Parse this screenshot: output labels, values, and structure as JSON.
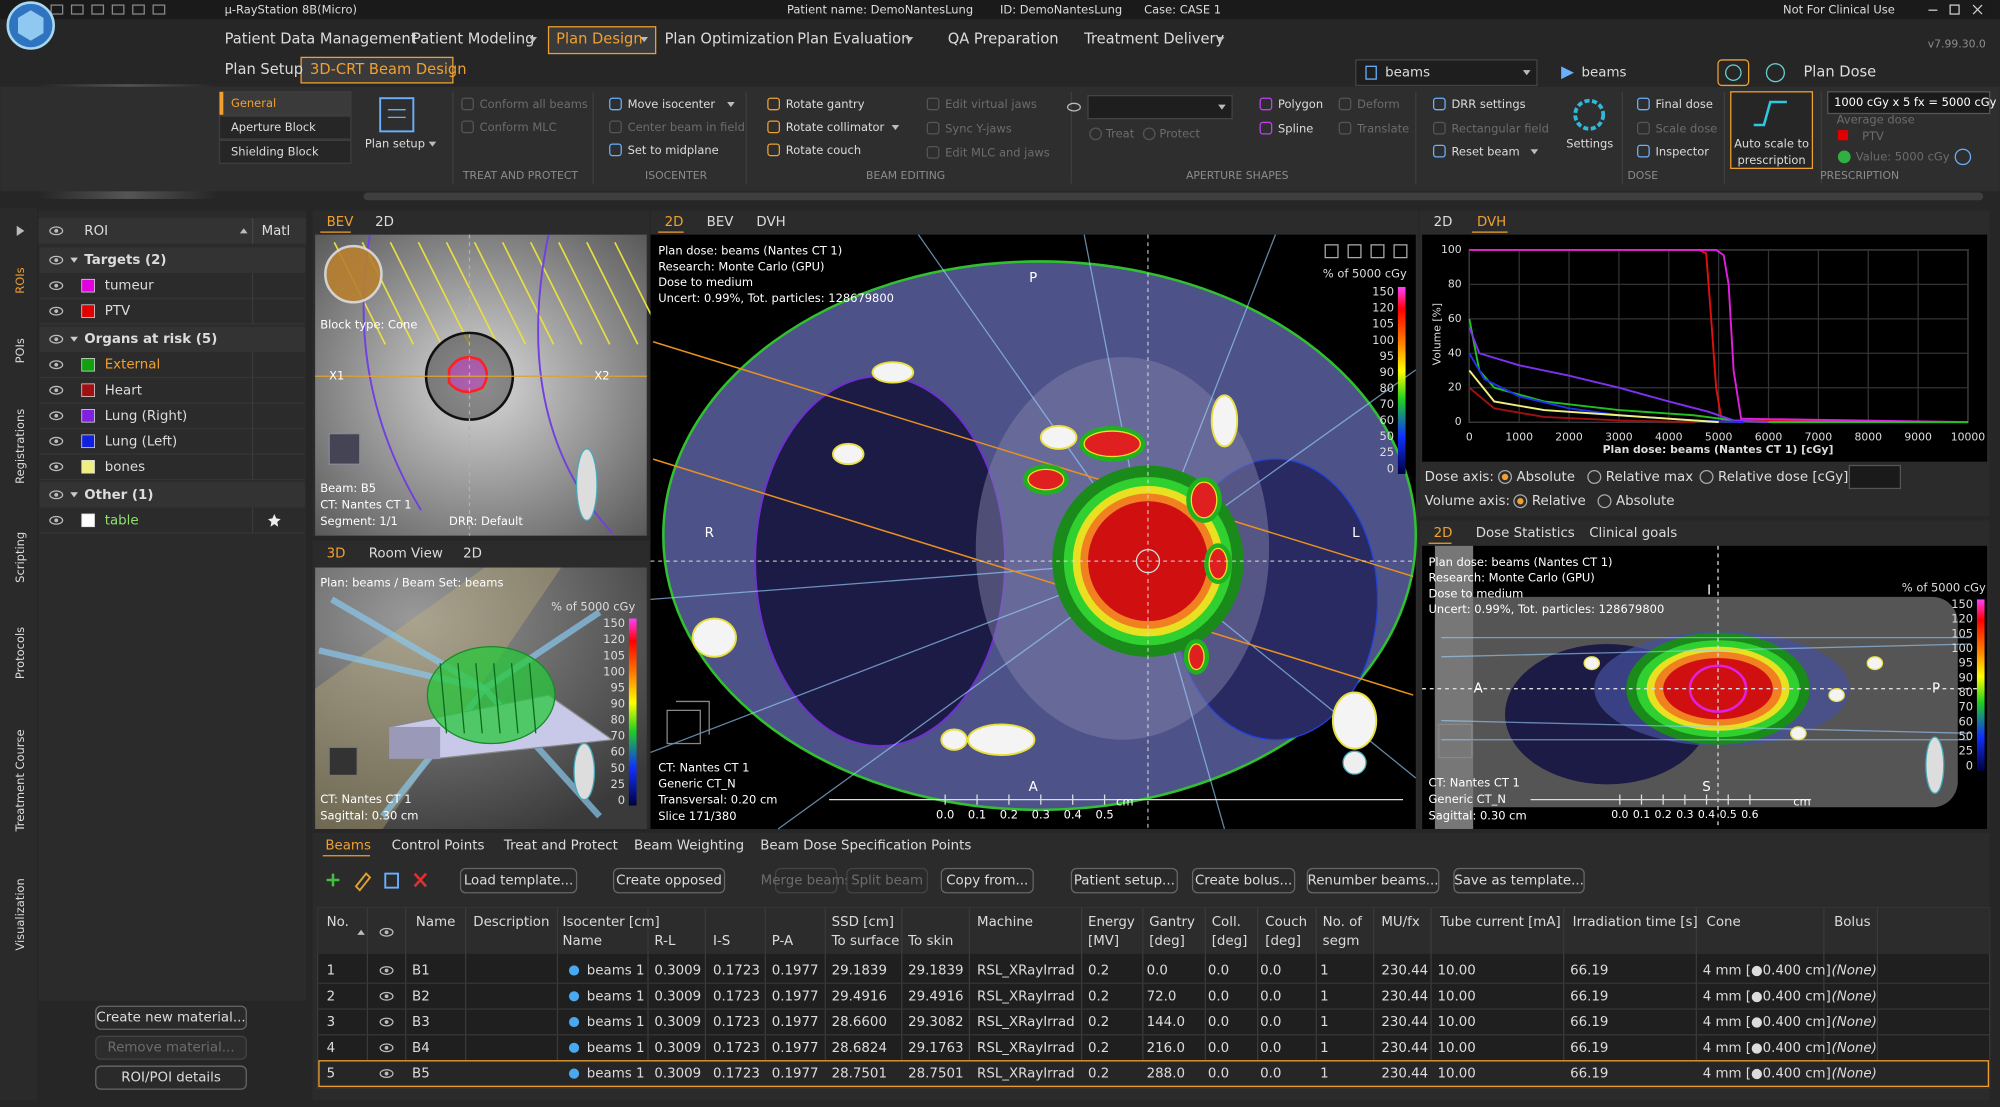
{
  "title_bar": {
    "app": "µ-RayStation 8B(Micro)",
    "patient": "Patient name: DemoNantesLung",
    "id": "ID: DemoNantesLung",
    "case": "Case: CASE 1",
    "notice": "Not For Clinical Use",
    "version": "v7.99.30.0"
  },
  "menu": {
    "items": [
      "Patient Data Management",
      "Patient Modeling",
      "Plan Design",
      "Plan Optimization",
      "Plan Evaluation",
      "QA Preparation",
      "Treatment Delivery"
    ],
    "active": 2
  },
  "submenu": {
    "items": [
      "Plan Setup",
      "3D-CRT Beam Design"
    ],
    "active": 1
  },
  "beam_set": {
    "plan": "beams",
    "beam_set": "beams",
    "dose": "Plan Dose"
  },
  "ribbon": {
    "tabs": [
      "General",
      "Aperture Block",
      "Shielding Block"
    ],
    "active_tab": 0,
    "plan_setup": "Plan setup",
    "groups": [
      {
        "label": "TREAT AND PROTECT",
        "items": [
          {
            "text": "Conform all beams",
            "enabled": false
          },
          {
            "text": "Conform MLC",
            "enabled": false
          }
        ]
      },
      {
        "label": "ISOCENTER",
        "items": [
          {
            "text": "Move isocenter",
            "enabled": true
          },
          {
            "text": "Center beam in field",
            "enabled": false
          },
          {
            "text": "Set to midplane",
            "enabled": true
          }
        ]
      },
      {
        "label": "BEAM EDITING",
        "items": [
          {
            "text": "Rotate gantry",
            "enabled": true
          },
          {
            "text": "Rotate collimator",
            "enabled": true
          },
          {
            "text": "Rotate couch",
            "enabled": true
          },
          {
            "text": "Edit virtual jaws",
            "enabled": false
          },
          {
            "text": "Sync Y-jaws",
            "enabled": false
          },
          {
            "text": "Edit MLC and jaws",
            "enabled": false
          }
        ]
      },
      {
        "label": "APERTURE SHAPES",
        "items": [
          {
            "text": "Treat",
            "enabled": false
          },
          {
            "text": "Protect",
            "enabled": false
          },
          {
            "text": "Polygon",
            "enabled": true
          },
          {
            "text": "Spline",
            "enabled": true
          },
          {
            "text": "Deform",
            "enabled": false
          },
          {
            "text": "Translate",
            "enabled": false
          }
        ]
      },
      {
        "items": [
          {
            "text": "DRR settings",
            "enabled": true
          },
          {
            "text": "Rectangular field",
            "enabled": false
          },
          {
            "text": "Reset beam",
            "enabled": true
          },
          {
            "text": "Settings",
            "enabled": true
          }
        ]
      },
      {
        "label": "DOSE",
        "items": [
          {
            "text": "Final dose",
            "enabled": true
          },
          {
            "text": "Scale dose",
            "enabled": false
          },
          {
            "text": "Inspector",
            "enabled": true
          }
        ]
      }
    ],
    "auto_scale": [
      "Auto scale to",
      "prescription"
    ],
    "prescription": {
      "label": "PRESCRIPTION",
      "value": "1000 cGy x 5 fx = 5000 cGy",
      "type": "Average dose",
      "roi": "PTV",
      "roi_color": "#e00000",
      "check": "Value: 5000 cGy"
    }
  },
  "side_tabs": [
    "ROIs",
    "POIs",
    "Registrations",
    "Scripting",
    "Protocols",
    "Treatment Course",
    "Visualization"
  ],
  "roi_panel": {
    "header": {
      "roi": "ROI",
      "matl": "Matl"
    },
    "groups": [
      {
        "label": "Targets (2)",
        "items": [
          {
            "name": "tumeur",
            "color": "#e000e0"
          },
          {
            "name": "PTV",
            "color": "#e00000"
          }
        ]
      },
      {
        "label": "Organs at risk (5)",
        "items": [
          {
            "name": "External",
            "color": "#10a010",
            "highlight": true
          },
          {
            "name": "Heart",
            "color": "#a01010"
          },
          {
            "name": "Lung (Right)",
            "color": "#8020e0"
          },
          {
            "name": "Lung (Left)",
            "color": "#1020e0"
          },
          {
            "name": "bones",
            "color": "#f0f080"
          }
        ]
      },
      {
        "label": "Other (1)",
        "items": [
          {
            "name": "table",
            "color": "#ffffff",
            "text_color": "#90e070"
          }
        ]
      }
    ],
    "buttons": [
      {
        "text": "Create new material...",
        "enabled": true
      },
      {
        "text": "Remove material...",
        "enabled": false
      },
      {
        "text": "ROI/POI details",
        "enabled": true
      }
    ]
  },
  "dose_legend": {
    "title": "% of 5000 cGy",
    "levels": [
      150,
      120,
      105,
      100,
      95,
      90,
      80,
      70,
      60,
      50,
      25,
      0
    ]
  },
  "bev_view": {
    "tabs": [
      "BEV",
      "2D"
    ],
    "block_type": "Block type: Cone",
    "x1": "X1",
    "x2": "X2",
    "info": [
      "Beam: B5",
      "CT: Nantes CT 1",
      "Segment: 1/1"
    ],
    "drr": "DRR: Default"
  },
  "view_3d": {
    "tabs": [
      "3D",
      "Room View",
      "2D"
    ],
    "plan": "Plan: beams / Beam Set: beams",
    "info": [
      "CT: Nantes CT 1",
      "Sagittal: 0.30 cm"
    ]
  },
  "main_view": {
    "tabs": [
      "2D",
      "BEV",
      "DVH"
    ],
    "info": [
      "Plan dose: beams (Nantes CT 1)",
      "Research: Monte Carlo (GPU)",
      "Dose to medium",
      "Uncert: 0.99%, Tot. particles: 128679800"
    ],
    "orientation": {
      "top": "P",
      "left": "R",
      "right": "L",
      "bottom": "A"
    },
    "footer": [
      "CT: Nantes CT 1",
      "Generic CT_N",
      "Transversal: 0.20 cm",
      "Slice 171/380"
    ],
    "scale": [
      "0.0",
      "0.1",
      "0.2",
      "0.3",
      "0.4",
      "0.5"
    ],
    "scale_unit": "cm"
  },
  "dvh": {
    "tabs": [
      "2D",
      "DVH"
    ],
    "chart_data": {
      "type": "line",
      "x_label": "Plan dose: beams (Nantes CT 1) [cGy]",
      "y_label": "Volume [%]",
      "xlim": [
        0,
        10000
      ],
      "ylim": [
        0,
        100
      ],
      "xticks": [
        0,
        1000,
        2000,
        3000,
        4000,
        5000,
        6000,
        7000,
        8000,
        9000,
        10000
      ],
      "yticks": [
        0,
        20,
        40,
        60,
        80,
        100
      ],
      "grid": true,
      "series": [
        {
          "color": "#e01010",
          "x": [
            0,
            4600,
            4750,
            4850,
            4950,
            5060,
            10000
          ],
          "values": [
            100,
            100,
            98,
            60,
            20,
            1,
            0
          ]
        },
        {
          "color": "#e020e0",
          "x": [
            0,
            4950,
            5100,
            5200,
            5300,
            5450,
            10000
          ],
          "values": [
            100,
            100,
            97,
            80,
            30,
            2,
            0
          ]
        },
        {
          "color": "#20c020",
          "x": [
            0,
            200,
            500,
            1500,
            3000,
            4500,
            5300,
            6000,
            10000
          ],
          "values": [
            60,
            30,
            20,
            12,
            7,
            4,
            1,
            0,
            0
          ]
        },
        {
          "color": "#8030f0",
          "x": [
            0,
            200,
            1000,
            2000,
            3000,
            4000,
            4800,
            5300,
            6000
          ],
          "values": [
            55,
            40,
            33,
            27,
            20,
            12,
            6,
            1,
            0
          ]
        },
        {
          "color": "#2030f0",
          "x": [
            0,
            300,
            1000,
            2000,
            3000,
            4500,
            5500
          ],
          "values": [
            40,
            25,
            15,
            8,
            4,
            1,
            0
          ]
        },
        {
          "color": "#a01010",
          "x": [
            0,
            500,
            1500,
            3000,
            4500
          ],
          "values": [
            20,
            8,
            3,
            1,
            0
          ]
        },
        {
          "color": "#f0f080",
          "x": [
            0,
            500,
            1500,
            3000,
            4000,
            5000
          ],
          "values": [
            30,
            12,
            7,
            4,
            2,
            0
          ]
        }
      ]
    },
    "dose_axis": {
      "label": "Dose axis:",
      "options": [
        "Absolute",
        "Relative max",
        "Relative dose [cGy]:"
      ],
      "selected": 0
    },
    "volume_axis": {
      "label": "Volume axis:",
      "options": [
        "Relative",
        "Absolute"
      ],
      "selected": 0
    }
  },
  "sagittal_view": {
    "tabs": [
      "2D",
      "Dose Statistics",
      "Clinical goals"
    ],
    "info": [
      "Plan dose: beams (Nantes CT 1)",
      "Research: Monte Carlo (GPU)",
      "Dose to medium",
      "Uncert: 0.99%, Tot. particles: 128679800"
    ],
    "orientation": {
      "top": "I",
      "left": "A",
      "right": "P",
      "bottom": "S"
    },
    "footer": [
      "CT: Nantes CT 1",
      "Generic CT_N",
      "Sagittal: 0.30 cm"
    ],
    "scale": [
      "0.0",
      "0.1",
      "0.2",
      "0.3",
      "0.4",
      "0.5",
      "0.6"
    ],
    "scale_unit": "cm"
  },
  "beams_panel": {
    "tabs": [
      "Beams",
      "Control Points",
      "Treat and Protect",
      "Beam Weighting",
      "Beam Dose Specification Points"
    ],
    "buttons": [
      {
        "text": "Load template...",
        "enabled": true
      },
      {
        "text": "Create opposed",
        "enabled": true
      },
      {
        "text": "Merge beams",
        "enabled": false
      },
      {
        "text": "Split beam",
        "enabled": false
      },
      {
        "text": "Copy from...",
        "enabled": true
      },
      {
        "text": "Patient setup...",
        "enabled": true
      },
      {
        "text": "Create bolus...",
        "enabled": true
      },
      {
        "text": "Renumber beams...",
        "enabled": true
      },
      {
        "text": "Save as template...",
        "enabled": true
      }
    ],
    "table": {
      "header_top": [
        "No.",
        "Name",
        "Description",
        "Isocenter [cm]",
        "SSD [cm]",
        "Machine",
        "Energy",
        "Gantry",
        "Coll.",
        "Couch",
        "No. of",
        "MU/fx",
        "Tube current [mA]",
        "Irradiation time [s]",
        "Cone",
        "Bolus"
      ],
      "header_bottom": [
        "Name",
        "R-L",
        "I-S",
        "P-A",
        "To surface",
        "To skin",
        "[MV]",
        "[deg]",
        "[deg]",
        "[deg]",
        "segm"
      ],
      "rows": [
        [
          "1",
          "B1",
          "beams 1",
          "0.3009",
          "0.1723",
          "0.1977",
          "29.1839",
          "29.1839",
          "RSL_XRayIrrad",
          "0.2",
          "0.0",
          "0.0",
          "0.0",
          "1",
          "230.44",
          "10.00",
          "66.19",
          "4 mm [●0.400 cm]",
          "(None)"
        ],
        [
          "2",
          "B2",
          "beams 1",
          "0.3009",
          "0.1723",
          "0.1977",
          "29.4916",
          "29.4916",
          "RSL_XRayIrrad",
          "0.2",
          "72.0",
          "0.0",
          "0.0",
          "1",
          "230.44",
          "10.00",
          "66.19",
          "4 mm [●0.400 cm]",
          "(None)"
        ],
        [
          "3",
          "B3",
          "beams 1",
          "0.3009",
          "0.1723",
          "0.1977",
          "28.6600",
          "29.3082",
          "RSL_XRayIrrad",
          "0.2",
          "144.0",
          "0.0",
          "0.0",
          "1",
          "230.44",
          "10.00",
          "66.19",
          "4 mm [●0.400 cm]",
          "(None)"
        ],
        [
          "4",
          "B4",
          "beams 1",
          "0.3009",
          "0.1723",
          "0.1977",
          "28.6824",
          "29.1763",
          "RSL_XRayIrrad",
          "0.2",
          "216.0",
          "0.0",
          "0.0",
          "1",
          "230.44",
          "10.00",
          "66.19",
          "4 mm [●0.400 cm]",
          "(None)"
        ],
        [
          "5",
          "B5",
          "beams 1",
          "0.3009",
          "0.1723",
          "0.1977",
          "28.7501",
          "28.7501",
          "RSL_XRayIrrad",
          "0.2",
          "288.0",
          "0.0",
          "0.0",
          "1",
          "230.44",
          "10.00",
          "66.19",
          "4 mm [●0.400 cm]",
          "(None)"
        ]
      ],
      "selected_row": 4
    }
  }
}
